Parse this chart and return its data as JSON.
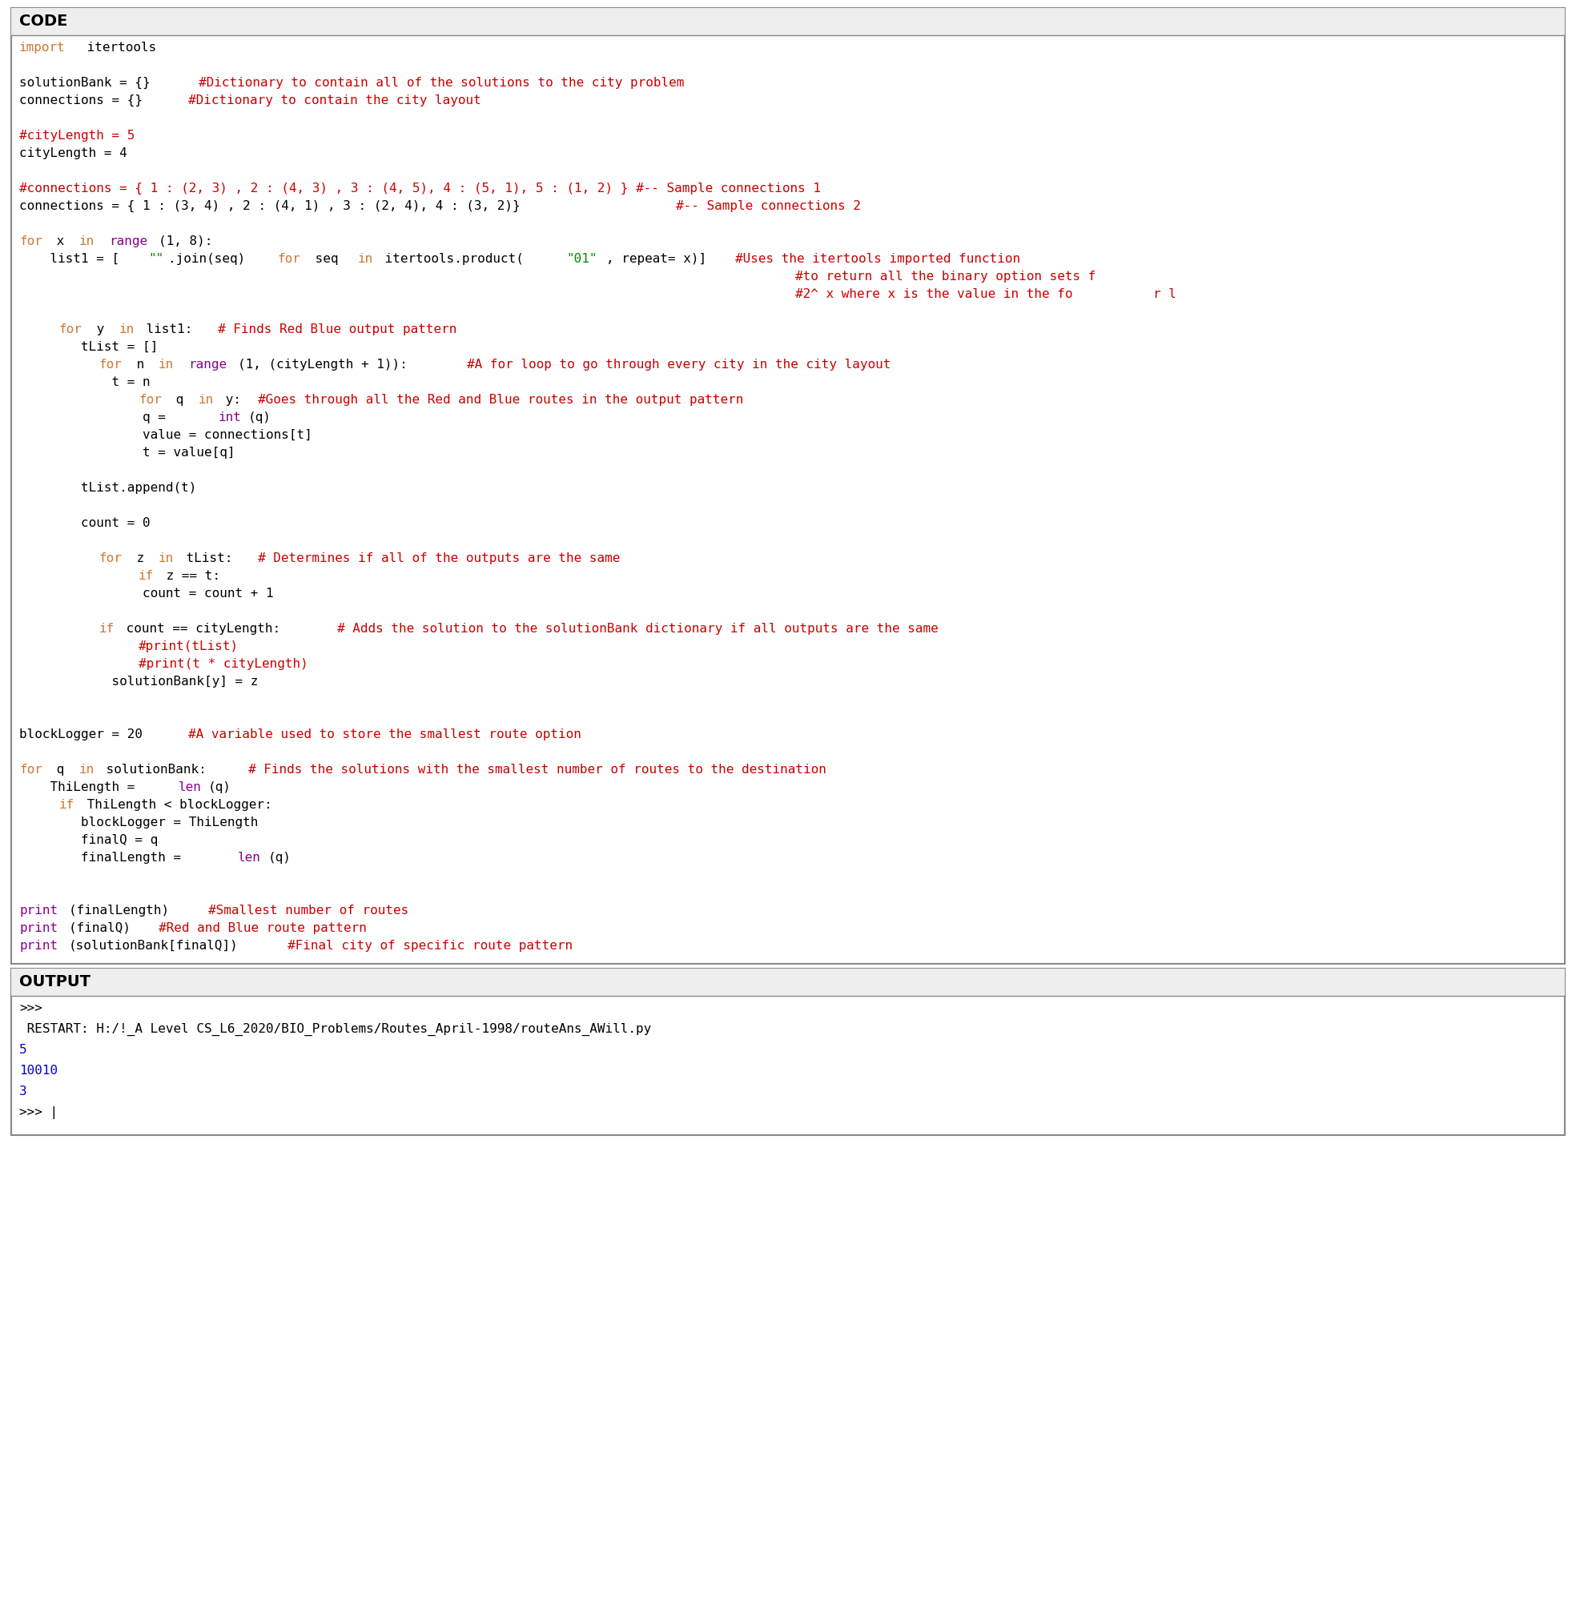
{
  "title_code": "CODE",
  "title_output": "OUTPUT",
  "bg_color": "#ffffff",
  "code_lines": [
    [
      {
        "t": "import",
        "c": "#CC7832"
      },
      {
        "t": " itertools",
        "c": "#000000"
      }
    ],
    [],
    [
      {
        "t": "solutionBank = {} ",
        "c": "#000000"
      },
      {
        "t": "#Dictionary to contain all of the solutions to the city problem",
        "c": "#CC0000"
      }
    ],
    [
      {
        "t": "connections = {} ",
        "c": "#000000"
      },
      {
        "t": "#Dictionary to contain the city layout",
        "c": "#CC0000"
      }
    ],
    [],
    [
      {
        "t": "#cityLength = 5",
        "c": "#CC0000"
      }
    ],
    [
      {
        "t": "cityLength = 4",
        "c": "#000000"
      }
    ],
    [],
    [
      {
        "t": "#connections = { 1 : (2, 3) , 2 : (4, 3) , 3 : (4, 5), 4 : (5, 1), 5 : (1, 2) } #-- Sample connections 1",
        "c": "#CC0000"
      }
    ],
    [
      {
        "t": "connections = { 1 : (3, 4) , 2 : (4, 1) , 3 : (2, 4), 4 : (3, 2)} ",
        "c": "#000000"
      },
      {
        "t": "#-- Sample connections 2",
        "c": "#CC0000"
      }
    ],
    [],
    [
      {
        "t": "for",
        "c": "#CC7832"
      },
      {
        "t": " x ",
        "c": "#000000"
      },
      {
        "t": "in",
        "c": "#CC7832"
      },
      {
        "t": " ",
        "c": "#000000"
      },
      {
        "t": "range",
        "c": "#8B008B"
      },
      {
        "t": "(1, 8):",
        "c": "#000000"
      }
    ],
    [
      {
        "t": "    list1 = [",
        "c": "#000000"
      },
      {
        "t": "\"\"",
        "c": "#008B00"
      },
      {
        "t": ".join(seq) ",
        "c": "#000000"
      },
      {
        "t": "for",
        "c": "#CC7832"
      },
      {
        "t": " seq ",
        "c": "#000000"
      },
      {
        "t": "in",
        "c": "#CC7832"
      },
      {
        "t": " itertools.product(",
        "c": "#000000"
      },
      {
        "t": "\"01\"",
        "c": "#008B00"
      },
      {
        "t": ", repeat= x)]",
        "c": "#000000"
      },
      {
        "t": "#Uses the itertools imported function",
        "c": "#CC0000"
      }
    ],
    [
      {
        "t": "                                                                              ",
        "c": "#000000"
      },
      {
        "t": "#to return all the binary option sets f",
        "c": "#CC0000"
      }
    ],
    [
      {
        "t": "                                                                              ",
        "c": "#000000"
      },
      {
        "t": "#2^ x where x is the value in the fo",
        "c": "#CC0000"
      },
      {
        "t": "r l",
        "c": "#CC0000"
      }
    ],
    [],
    [
      {
        "t": "    ",
        "c": "#000000"
      },
      {
        "t": "for",
        "c": "#CC7832"
      },
      {
        "t": " y ",
        "c": "#000000"
      },
      {
        "t": "in",
        "c": "#CC7832"
      },
      {
        "t": " list1: ",
        "c": "#000000"
      },
      {
        "t": "# Finds Red Blue output pattern",
        "c": "#CC0000"
      }
    ],
    [
      {
        "t": "        tList = []",
        "c": "#000000"
      }
    ],
    [
      {
        "t": "        ",
        "c": "#000000"
      },
      {
        "t": "for",
        "c": "#CC7832"
      },
      {
        "t": " n ",
        "c": "#000000"
      },
      {
        "t": "in",
        "c": "#CC7832"
      },
      {
        "t": " ",
        "c": "#000000"
      },
      {
        "t": "range",
        "c": "#8B008B"
      },
      {
        "t": "(1, (cityLength + 1)): ",
        "c": "#000000"
      },
      {
        "t": "#A for loop to go through every city in the city layout",
        "c": "#CC0000"
      }
    ],
    [
      {
        "t": "            t = n",
        "c": "#000000"
      }
    ],
    [
      {
        "t": "            ",
        "c": "#000000"
      },
      {
        "t": "for",
        "c": "#CC7832"
      },
      {
        "t": " q ",
        "c": "#000000"
      },
      {
        "t": "in",
        "c": "#CC7832"
      },
      {
        "t": " y: ",
        "c": "#000000"
      },
      {
        "t": "#Goes through all the Red and Blue routes in the output pattern",
        "c": "#CC0000"
      }
    ],
    [
      {
        "t": "                q = ",
        "c": "#000000"
      },
      {
        "t": "int",
        "c": "#8B008B"
      },
      {
        "t": "(q)",
        "c": "#000000"
      }
    ],
    [
      {
        "t": "                value = connections[t]",
        "c": "#000000"
      }
    ],
    [
      {
        "t": "                t = value[q]",
        "c": "#000000"
      }
    ],
    [],
    [
      {
        "t": "        tList.append(t)",
        "c": "#000000"
      }
    ],
    [],
    [
      {
        "t": "        count = 0",
        "c": "#000000"
      }
    ],
    [],
    [
      {
        "t": "        ",
        "c": "#000000"
      },
      {
        "t": "for",
        "c": "#CC7832"
      },
      {
        "t": " z ",
        "c": "#000000"
      },
      {
        "t": "in",
        "c": "#CC7832"
      },
      {
        "t": " tList: ",
        "c": "#000000"
      },
      {
        "t": "# Determines if all of the outputs are the same",
        "c": "#CC0000"
      }
    ],
    [
      {
        "t": "            ",
        "c": "#000000"
      },
      {
        "t": "if",
        "c": "#CC7832"
      },
      {
        "t": " z == t:",
        "c": "#000000"
      }
    ],
    [
      {
        "t": "                count = count + 1",
        "c": "#000000"
      }
    ],
    [],
    [
      {
        "t": "        ",
        "c": "#000000"
      },
      {
        "t": "if",
        "c": "#CC7832"
      },
      {
        "t": " count == cityLength: ",
        "c": "#000000"
      },
      {
        "t": "# Adds the solution to the solutionBank dictionary if all outputs are the same",
        "c": "#CC0000"
      }
    ],
    [
      {
        "t": "            ",
        "c": "#000000"
      },
      {
        "t": "#print(tList)",
        "c": "#CC0000"
      }
    ],
    [
      {
        "t": "            ",
        "c": "#000000"
      },
      {
        "t": "#print(t * cityLength)",
        "c": "#CC0000"
      }
    ],
    [
      {
        "t": "            solutionBank[y] = z",
        "c": "#000000"
      }
    ],
    [],
    [],
    [
      {
        "t": "blockLogger = 20 ",
        "c": "#000000"
      },
      {
        "t": "#A variable used to store the smallest route option",
        "c": "#CC0000"
      }
    ],
    [],
    [
      {
        "t": "for",
        "c": "#CC7832"
      },
      {
        "t": " q ",
        "c": "#000000"
      },
      {
        "t": "in",
        "c": "#CC7832"
      },
      {
        "t": " solutionBank: ",
        "c": "#000000"
      },
      {
        "t": "# Finds the solutions with the smallest number of routes to the destination",
        "c": "#CC0000"
      }
    ],
    [
      {
        "t": "    ThiLength = ",
        "c": "#000000"
      },
      {
        "t": "len",
        "c": "#8B008B"
      },
      {
        "t": "(q)",
        "c": "#000000"
      }
    ],
    [
      {
        "t": "    ",
        "c": "#000000"
      },
      {
        "t": "if",
        "c": "#CC7832"
      },
      {
        "t": " ThiLength < blockLogger:",
        "c": "#000000"
      }
    ],
    [
      {
        "t": "        blockLogger = ThiLength",
        "c": "#000000"
      }
    ],
    [
      {
        "t": "        finalQ = q",
        "c": "#000000"
      }
    ],
    [
      {
        "t": "        finalLength = ",
        "c": "#000000"
      },
      {
        "t": "len",
        "c": "#8B008B"
      },
      {
        "t": "(q)",
        "c": "#000000"
      }
    ],
    [],
    [],
    [
      {
        "t": "print",
        "c": "#8B008B"
      },
      {
        "t": "(finalLength) ",
        "c": "#000000"
      },
      {
        "t": "#Smallest number of routes",
        "c": "#CC0000"
      }
    ],
    [
      {
        "t": "print",
        "c": "#8B008B"
      },
      {
        "t": "(finalQ) ",
        "c": "#000000"
      },
      {
        "t": "#Red and Blue route pattern",
        "c": "#CC0000"
      }
    ],
    [
      {
        "t": "print",
        "c": "#8B008B"
      },
      {
        "t": "(solutionBank[finalQ])",
        "c": "#000000"
      },
      {
        "t": "#Final city of specific route pattern",
        "c": "#CC0000"
      }
    ]
  ],
  "output_lines": [
    [
      {
        "t": ">>>",
        "c": "#000000"
      }
    ],
    [
      {
        "t": " RESTART: H:/!_A Level CS_L6_2020/BIO_Problems/Routes_April-1998/routeAns_AWill.py",
        "c": "#000000"
      }
    ],
    [
      {
        "t": "5",
        "c": "#0000CC"
      }
    ],
    [
      {
        "t": "10010",
        "c": "#0000CC"
      }
    ],
    [
      {
        "t": "3",
        "c": "#0000CC"
      }
    ],
    [
      {
        "t": ">>> |",
        "c": "#000000"
      }
    ]
  ]
}
